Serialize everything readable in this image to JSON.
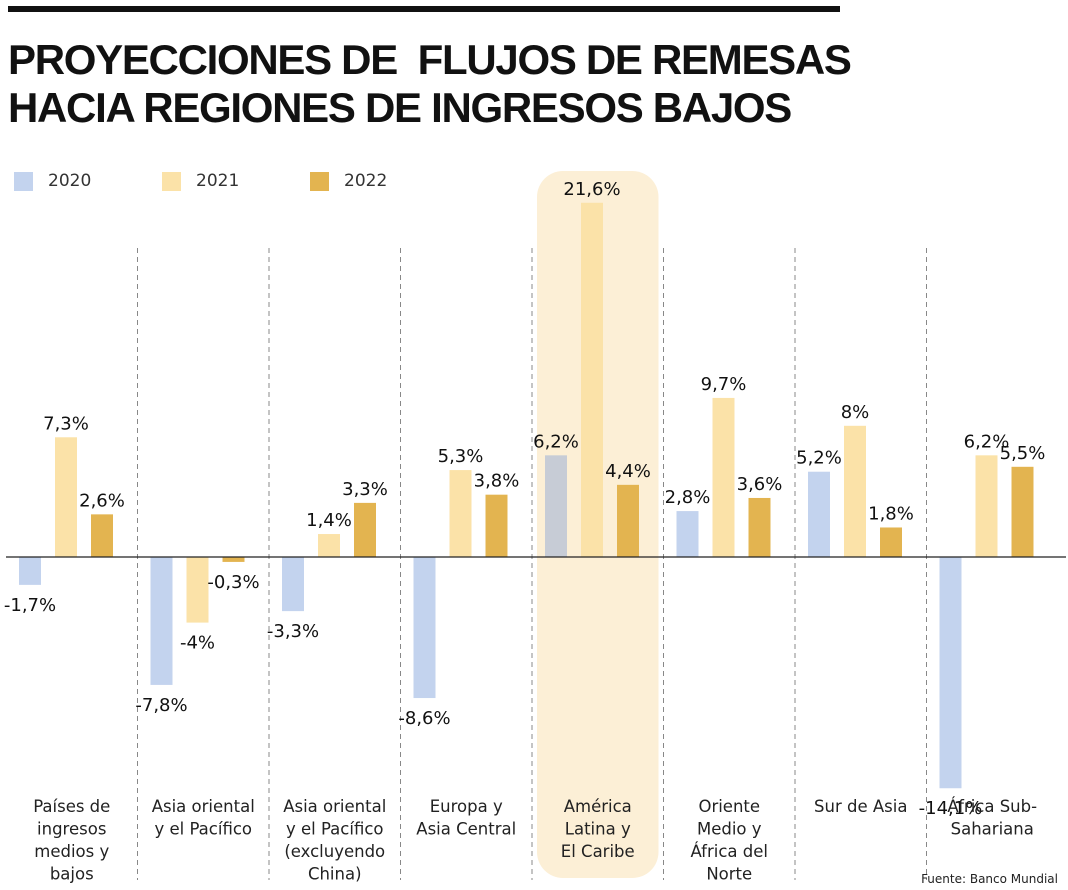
{
  "title": {
    "line1": "PROYECCIONES DE  FLUJOS DE REMESAS",
    "line2": "HACIA REGIONES DE INGRESOS BAJOS"
  },
  "source": "Fuente: Banco Mundial",
  "colors": {
    "2020": "#c3d3ee",
    "2021": "#fbe2a8",
    "2022": "#e3b450",
    "highlight": "#fcefd6",
    "highlight_2020": "#c7ccd6"
  },
  "chart_data": {
    "type": "bar",
    "title": "PROYECCIONES DE  FLUJOS DE REMESAS HACIA REGIONES DE INGRESOS BAJOS",
    "xlabel": "",
    "ylabel": "",
    "ylim": [
      -14.6,
      22.4
    ],
    "grid": false,
    "legend_position": "top-left",
    "highlighted_category": "América Latina y El Caribe",
    "categories": [
      "Países de ingresos medios y bajos",
      "Asia oriental y el Pacífico",
      "Asia oriental y el Pacífico (excluyendo China)",
      "Europa y Asia Central",
      "América Latina y El Caribe",
      "Oriente Medio y África del Norte",
      "Sur de Asia",
      "África Sub-Sahariana"
    ],
    "category_lines": [
      [
        "Países de",
        "ingresos",
        "medios y",
        "bajos"
      ],
      [
        "Asia oriental",
        "y el Pacífico"
      ],
      [
        "Asia oriental",
        "y el Pacífico",
        "(excluyendo",
        "China)"
      ],
      [
        "Europa y",
        "Asia Central"
      ],
      [
        "América",
        "Latina y",
        "El Caribe"
      ],
      [
        "Oriente",
        "Medio y",
        "África del",
        "Norte"
      ],
      [
        "Sur de Asia"
      ],
      [
        "África Sub-",
        "Sahariana"
      ]
    ],
    "series": [
      {
        "name": "2020",
        "values": [
          -1.7,
          -7.8,
          -3.3,
          -8.6,
          6.2,
          2.8,
          5.2,
          -14.1
        ],
        "labels": [
          "-1,7%",
          "-7,8%",
          "-3,3%",
          "-8,6%",
          "6,2%",
          "2,8%",
          "5,2%",
          "-14,1%"
        ]
      },
      {
        "name": "2021",
        "values": [
          7.3,
          -4.0,
          1.4,
          5.3,
          21.6,
          9.7,
          8.0,
          6.2
        ],
        "labels": [
          "7,3%",
          "-4%",
          "1,4%",
          "5,3%",
          "21,6%",
          "9,7%",
          "8%",
          "6,2%"
        ]
      },
      {
        "name": "2022",
        "values": [
          2.6,
          -0.3,
          3.3,
          3.8,
          4.4,
          3.6,
          1.8,
          5.5
        ],
        "labels": [
          "2,6%",
          "-0,3%",
          "3,3%",
          "3,8%",
          "4,4%",
          "3,6%",
          "1,8%",
          "5,5%"
        ]
      }
    ]
  }
}
